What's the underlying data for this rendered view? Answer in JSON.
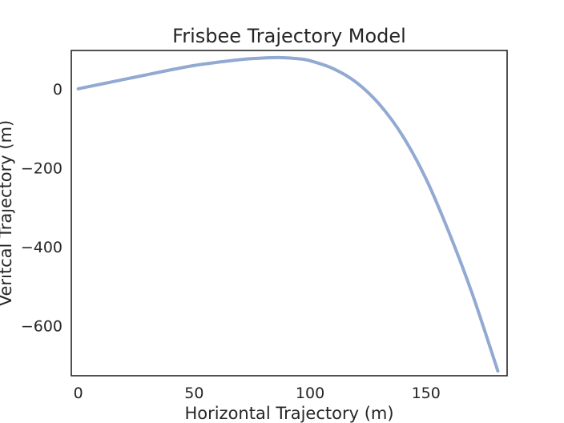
{
  "chart_data": {
    "type": "line",
    "title": "Frisbee Trajectory Model",
    "xlabel": "Horizontal Trajectory (m)",
    "ylabel": "Veritcal Trajectory (m)",
    "xlim": [
      -3,
      185
    ],
    "ylim": [
      -727,
      97
    ],
    "xticks": [
      0,
      50,
      100,
      150
    ],
    "yticks": [
      0,
      -200,
      -400,
      -600
    ],
    "xtick_labels": [
      "0",
      "50",
      "100",
      "150"
    ],
    "ytick_labels": [
      "0",
      "−200",
      "−400",
      "−600"
    ],
    "grid": false,
    "series": [
      {
        "color": "#92a9d2",
        "x": [
          0,
          10,
          20,
          30,
          40,
          50,
          60,
          70,
          80,
          87,
          95,
          100,
          110,
          120,
          130,
          140,
          150,
          160,
          170,
          181
        ],
        "y": [
          0,
          12,
          24,
          36,
          48,
          59,
          67,
          74,
          78,
          79,
          76,
          71,
          51,
          16,
          -40,
          -120,
          -228,
          -365,
          -520,
          -715
        ]
      }
    ]
  }
}
